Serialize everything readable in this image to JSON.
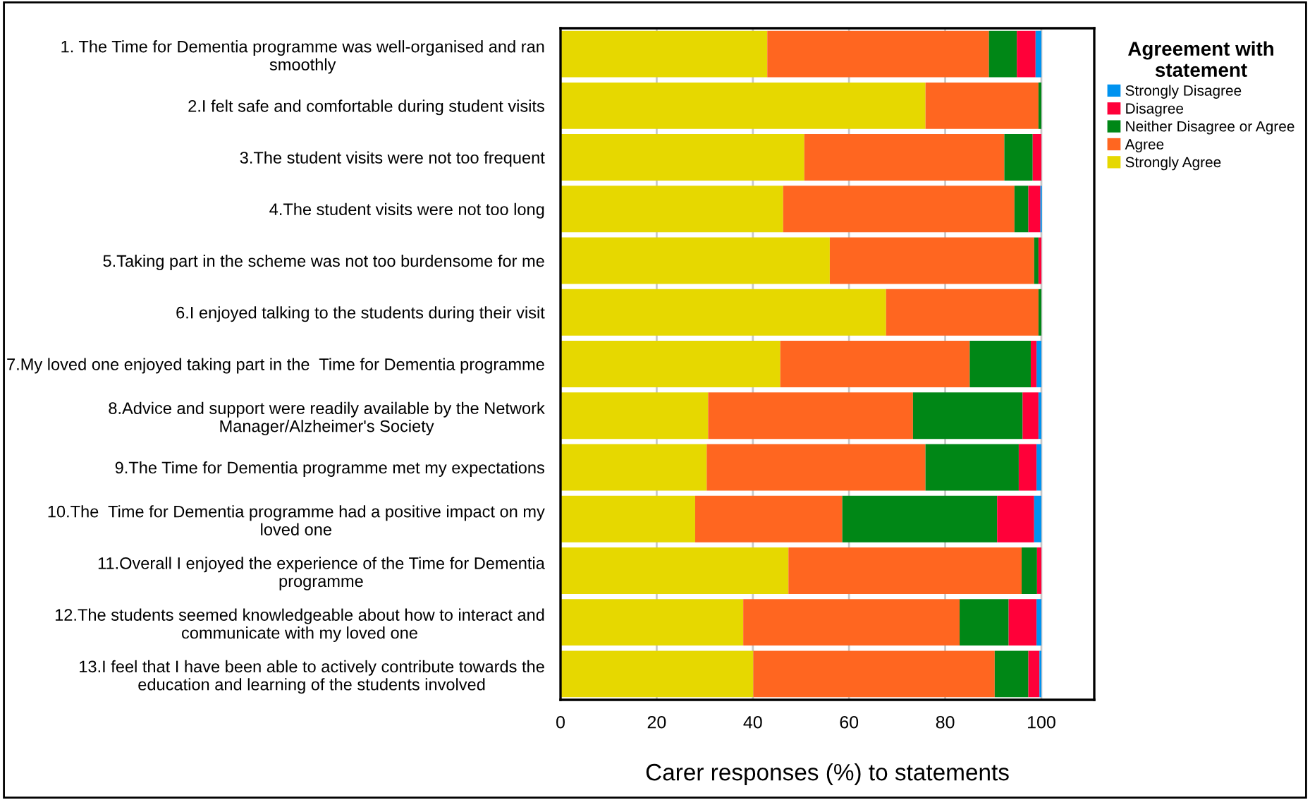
{
  "chart_data": {
    "type": "bar",
    "orientation": "horizontal",
    "stacked": true,
    "categories": [
      "1. The Time for Dementia programme was well-organised and ran\nsmoothly",
      "2.I felt safe and comfortable during student visits",
      "3.The student visits were not too frequent",
      "4.The student visits were not too long",
      "5.Taking part in the scheme was not too burdensome for me",
      "6.I enjoyed talking to the students during their visit",
      "7.My loved one enjoyed taking part in the  Time for Dementia programme",
      "8.Advice and support were readily available by the Network\nManager/Alzheimer's Society",
      "9.The Time for Dementia programme met my expectations",
      "10.The  Time for Dementia programme had a positive impact on my\nloved one",
      "11.Overall I enjoyed the experience of the Time for Dementia\nprogramme",
      "12.The students seemed knowledgeable about how to interact and\ncommunicate with my loved one",
      "13.I feel that I have been able to actively contribute towards the\neducation and learning of the students involved"
    ],
    "series": [
      {
        "name": "Strongly Agree",
        "color": "#e6d800",
        "values": [
          43.0,
          75.9,
          50.7,
          46.3,
          56.0,
          67.7,
          45.7,
          30.7,
          30.4,
          28.0,
          47.4,
          38.0,
          40.1
        ]
      },
      {
        "name": "Agree",
        "color": "#ff6620",
        "values": [
          46.1,
          23.5,
          41.6,
          48.1,
          42.5,
          31.7,
          39.4,
          42.6,
          45.5,
          30.6,
          48.5,
          45.0,
          50.2
        ]
      },
      {
        "name": "Neither Disagree or Agree",
        "color": "#008716",
        "values": [
          5.8,
          0.6,
          5.9,
          2.9,
          0.9,
          0.6,
          12.7,
          22.8,
          19.4,
          32.2,
          3.2,
          10.2,
          7.0
        ]
      },
      {
        "name": "Disagree",
        "color": "#ff0039",
        "values": [
          3.9,
          0,
          1.8,
          2.5,
          0.6,
          0,
          1.2,
          3.3,
          3.7,
          7.7,
          0.9,
          5.8,
          2.3
        ]
      },
      {
        "name": "Strongly Disagree",
        "color": "#0093f0",
        "values": [
          1.2,
          0,
          0,
          0.3,
          0,
          0,
          1.0,
          0.6,
          1.0,
          1.5,
          0,
          1.0,
          0.4
        ]
      }
    ],
    "xlim": [
      0,
      111
    ],
    "xticks": [
      0,
      20,
      40,
      60,
      80,
      100
    ],
    "xlabel": "Carer responses (%) to statements",
    "legend_title": "Agreement with\nstatement",
    "legend": "top right",
    "grid": "x"
  }
}
